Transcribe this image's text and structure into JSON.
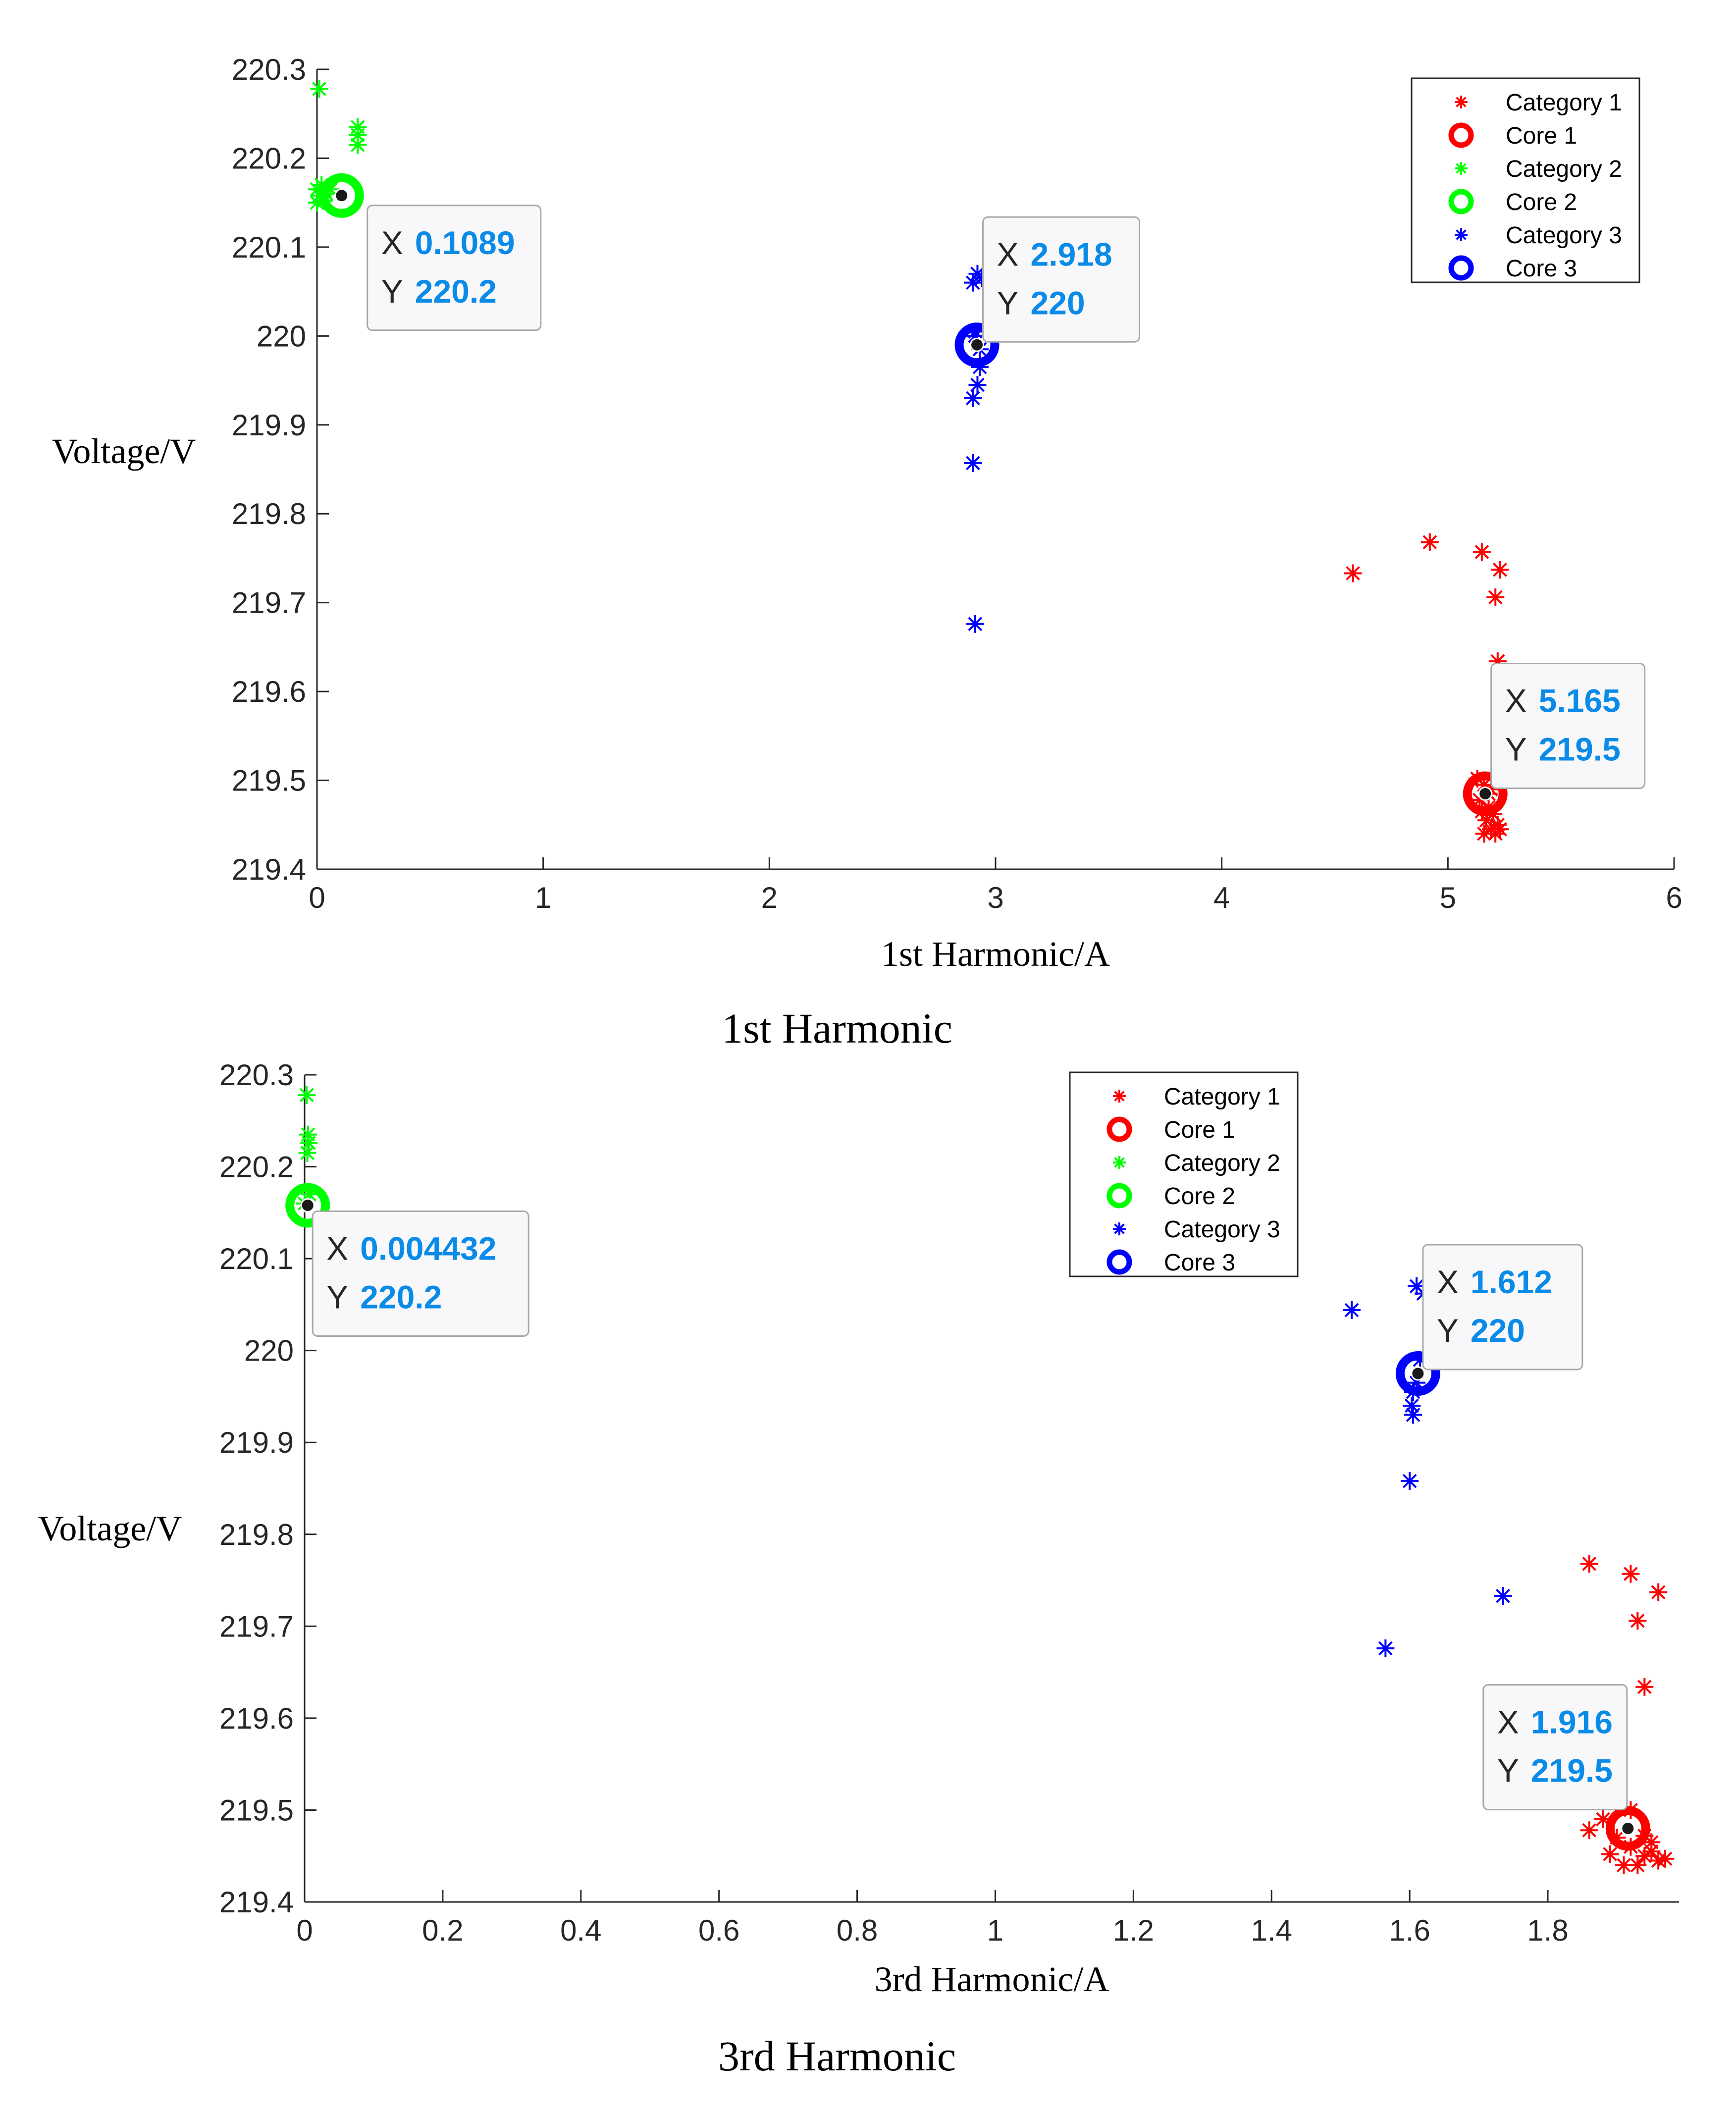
{
  "chart_data": [
    {
      "type": "scatter",
      "title": "",
      "caption": "1st Harmonic",
      "xlabel": "1st Harmonic/A",
      "ylabel": "Voltage/V",
      "xlim": [
        0,
        6
      ],
      "ylim": [
        219.4,
        220.3
      ],
      "xticks": [
        0,
        1,
        2,
        3,
        4,
        5,
        6
      ],
      "xtick_labels": [
        "0",
        "1",
        "2",
        "3",
        "4",
        "5",
        "6"
      ],
      "yticks": [
        219.4,
        219.5,
        219.6,
        219.7,
        219.8,
        219.9,
        220,
        220.1,
        220.2,
        220.3
      ],
      "ytick_labels": [
        "219.4",
        "219.5",
        "219.6",
        "219.7",
        "219.8",
        "219.9",
        "220",
        "220.1",
        "220.2",
        "220.3"
      ],
      "grid": false,
      "legend_position": "top-right",
      "series": [
        {
          "name": "Category 1",
          "marker": "asterisk",
          "color": "#ff0000",
          "x": [
            4.58,
            4.92,
            5.15,
            5.23,
            5.21,
            5.22,
            5.13,
            5.16,
            5.19,
            5.14,
            5.18,
            5.2,
            5.17,
            5.22,
            5.15,
            5.19,
            5.21,
            5.16,
            5.23,
            5.18
          ],
          "y": [
            219.733,
            219.768,
            219.757,
            219.737,
            219.706,
            219.634,
            219.502,
            219.495,
            219.49,
            219.478,
            219.47,
            219.462,
            219.455,
            219.45,
            219.465,
            219.445,
            219.44,
            219.44,
            219.445,
            219.485
          ]
        },
        {
          "name": "Core 1",
          "marker": "circle",
          "color": "#ff0000",
          "x": [
            5.165
          ],
          "y": [
            219.485
          ]
        },
        {
          "name": "Category 2",
          "marker": "asterisk",
          "color": "#00ff00",
          "x": [
            0.01,
            0.18,
            0.18,
            0.18,
            0.0,
            0.02,
            0.04,
            0.0,
            0.03,
            0.06,
            0.01
          ],
          "y": [
            220.278,
            220.235,
            220.226,
            220.215,
            220.165,
            220.17,
            220.16,
            220.15,
            220.152,
            220.165,
            220.158
          ]
        },
        {
          "name": "Core 2",
          "marker": "circle",
          "color": "#00ff00",
          "x": [
            0.1089
          ],
          "y": [
            220.158
          ]
        },
        {
          "name": "Category 3",
          "marker": "asterisk",
          "color": "#0000ff",
          "x": [
            2.9,
            2.92,
            2.94,
            2.91,
            2.93,
            2.92,
            2.9,
            2.9,
            2.91,
            2.91,
            2.93
          ],
          "y": [
            220.06,
            220.07,
            220.065,
            220.0,
            219.965,
            219.945,
            219.93,
            219.857,
            219.676,
            220.005,
            219.985
          ]
        },
        {
          "name": "Core 3",
          "marker": "circle",
          "color": "#0000ff",
          "x": [
            2.918
          ],
          "y": [
            219.99
          ]
        }
      ],
      "datatips": [
        {
          "x_key": "X",
          "x_text": "0.1089",
          "y_key": "Y",
          "y_text": "220.2",
          "x": 0.1089,
          "y": 220.158
        },
        {
          "x_key": "X",
          "x_text": "2.918",
          "y_key": "Y",
          "y_text": "220",
          "x": 2.918,
          "y": 219.99
        },
        {
          "x_key": "X",
          "x_text": "5.165",
          "y_key": "Y",
          "y_text": "219.5",
          "x": 5.165,
          "y": 219.485
        }
      ]
    },
    {
      "type": "scatter",
      "title": "",
      "caption": "3rd Harmonic",
      "xlabel": "3rd Harmonic/A",
      "ylabel": "Voltage/V",
      "xlim": [
        0,
        1.99
      ],
      "ylim": [
        219.4,
        220.3
      ],
      "xticks": [
        0,
        0.2,
        0.4,
        0.6,
        0.8,
        1,
        1.2,
        1.4,
        1.6,
        1.8
      ],
      "xtick_labels": [
        "0",
        "0.2",
        "0.4",
        "0.6",
        "0.8",
        "1",
        "1.2",
        "1.4",
        "1.6",
        "1.8"
      ],
      "yticks": [
        219.4,
        219.5,
        219.6,
        219.7,
        219.8,
        219.9,
        220,
        220.1,
        220.2,
        220.3
      ],
      "ytick_labels": [
        "219.4",
        "219.5",
        "219.6",
        "219.7",
        "219.8",
        "219.9",
        "220",
        "220.1",
        "220.2",
        "220.3"
      ],
      "grid": false,
      "legend_position": "top-right",
      "series": [
        {
          "name": "Category 1",
          "marker": "asterisk",
          "color": "#ff0000",
          "x": [
            1.86,
            1.92,
            1.96,
            1.93,
            1.94,
            1.86,
            1.88,
            1.9,
            1.92,
            1.94,
            1.95,
            1.96,
            1.91,
            1.93,
            1.89,
            1.95,
            1.97,
            1.92,
            1.94
          ],
          "y": [
            219.768,
            219.757,
            219.737,
            219.706,
            219.634,
            219.478,
            219.49,
            219.47,
            219.46,
            219.45,
            219.465,
            219.445,
            219.44,
            219.44,
            219.452,
            219.455,
            219.447,
            219.5,
            219.472
          ]
        },
        {
          "name": "Core 1",
          "marker": "circle",
          "color": "#ff0000",
          "x": [
            1.916
          ],
          "y": [
            219.48
          ]
        },
        {
          "name": "Category 2",
          "marker": "asterisk",
          "color": "#00ff00",
          "x": [
            0.003,
            0.005,
            0.006,
            0.004,
            0.007,
            0.0
          ],
          "y": [
            220.278,
            220.235,
            220.226,
            220.215,
            220.17,
            220.16
          ]
        },
        {
          "name": "Core 2",
          "marker": "circle",
          "color": "#00ff00",
          "x": [
            0.004432
          ],
          "y": [
            220.158
          ]
        },
        {
          "name": "Category 3",
          "marker": "asterisk",
          "color": "#0000ff",
          "x": [
            1.516,
            1.61,
            1.62,
            1.605,
            1.603,
            1.605,
            1.6,
            1.735,
            1.565,
            1.615,
            1.61
          ],
          "y": [
            220.044,
            220.07,
            220.062,
            219.955,
            219.94,
            219.93,
            219.858,
            219.733,
            219.676,
            219.99,
            219.965
          ]
        },
        {
          "name": "Core 3",
          "marker": "circle",
          "color": "#0000ff",
          "x": [
            1.612
          ],
          "y": [
            219.975
          ]
        }
      ],
      "datatips": [
        {
          "x_key": "X",
          "x_text": "0.004432",
          "y_key": "Y",
          "y_text": "220.2",
          "x": 0.004432,
          "y": 220.158
        },
        {
          "x_key": "X",
          "x_text": "1.612",
          "y_key": "Y",
          "y_text": "220",
          "x": 1.612,
          "y": 219.975
        },
        {
          "x_key": "X",
          "x_text": "1.916",
          "y_key": "Y",
          "y_text": "219.5",
          "x": 1.916,
          "y": 219.48
        }
      ]
    }
  ]
}
